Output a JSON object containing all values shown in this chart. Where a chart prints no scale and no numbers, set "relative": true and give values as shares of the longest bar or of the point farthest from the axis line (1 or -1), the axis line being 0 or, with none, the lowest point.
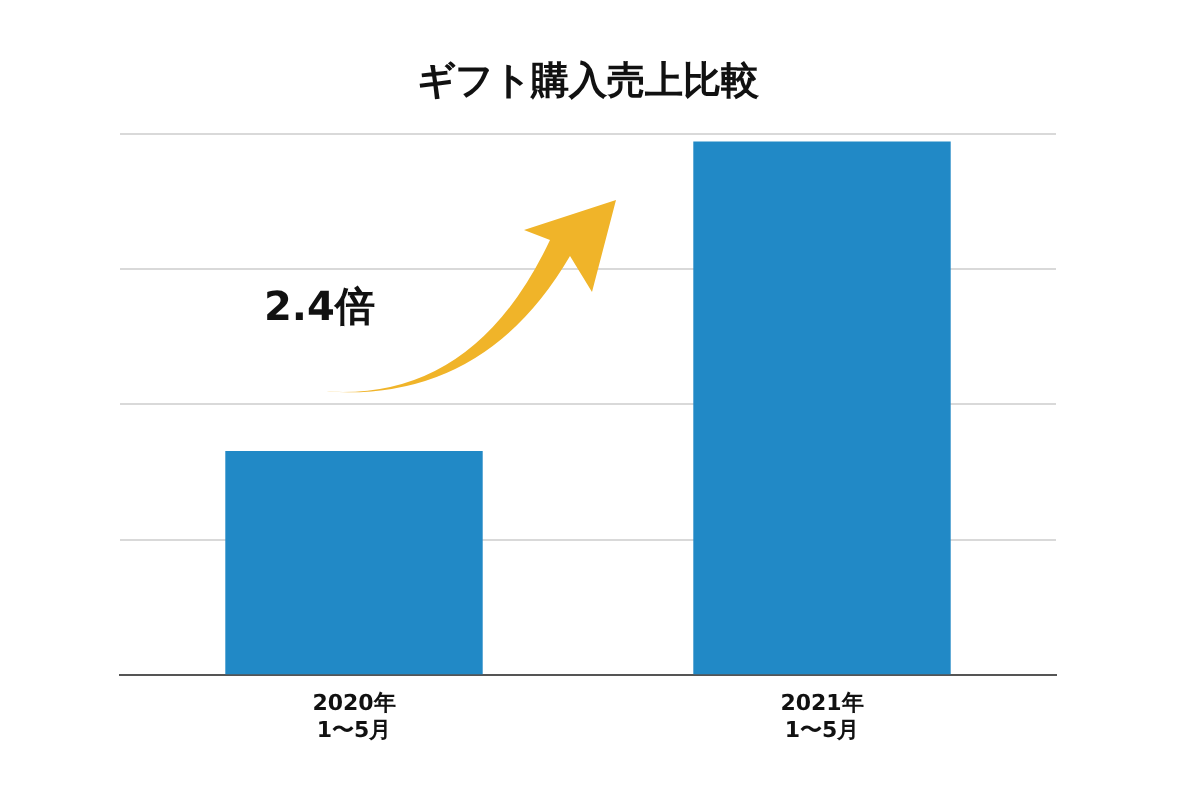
{
  "chart_data": {
    "type": "bar",
    "title": "ギフト購入売上比較",
    "categories": [
      "2020年\n1〜5月",
      "2021年\n1〜5月"
    ],
    "values": [
      0.42,
      1
    ],
    "color": "#2189c6",
    "relative": true,
    "grid": "y",
    "annotations": [
      "2.4倍"
    ]
  }
}
